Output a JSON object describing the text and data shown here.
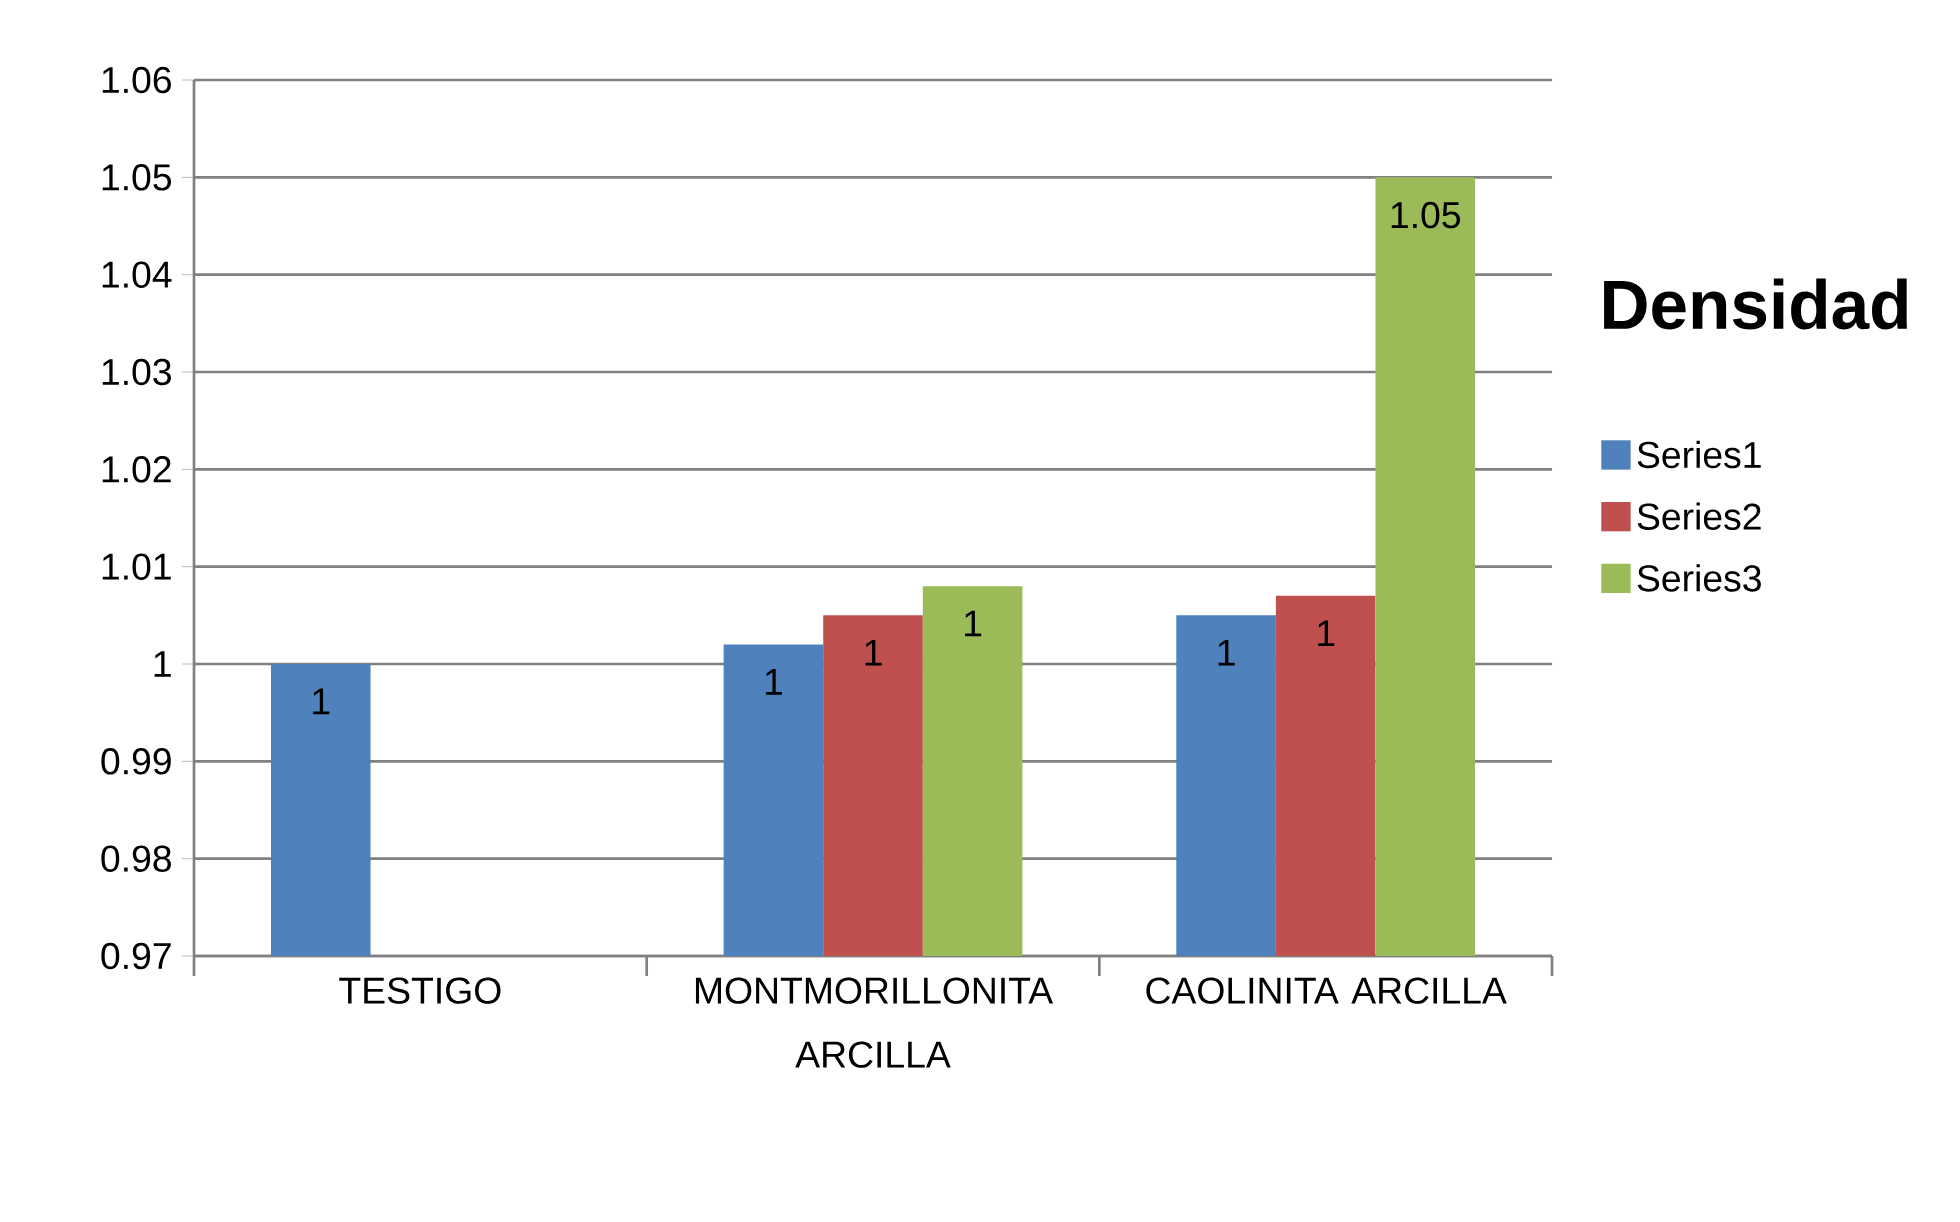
{
  "chart_data": {
    "type": "bar",
    "title": "Densidad",
    "categories": [
      "TESTIGO",
      "MONTMORILLONITA ARCILLA",
      "CAOLINITA ARCILLA"
    ],
    "series": [
      {
        "name": "Series1",
        "color": "#4f81bd",
        "values": [
          1.0,
          1.002,
          1.005
        ],
        "value_labels": [
          "1",
          "1",
          "1"
        ]
      },
      {
        "name": "Series2",
        "color": "#c0504d",
        "values": [
          null,
          1.005,
          1.007
        ],
        "value_labels": [
          null,
          "1",
          "1"
        ]
      },
      {
        "name": "Series3",
        "color": "#9bbb59",
        "values": [
          null,
          1.008,
          1.05
        ],
        "value_labels": [
          null,
          "1",
          "1.05"
        ]
      }
    ],
    "ylim": [
      0.97,
      1.06
    ],
    "yticks": [
      0.97,
      0.98,
      0.99,
      1,
      1.01,
      1.02,
      1.03,
      1.04,
      1.05,
      1.06
    ],
    "grid": "y",
    "legend": "right"
  }
}
